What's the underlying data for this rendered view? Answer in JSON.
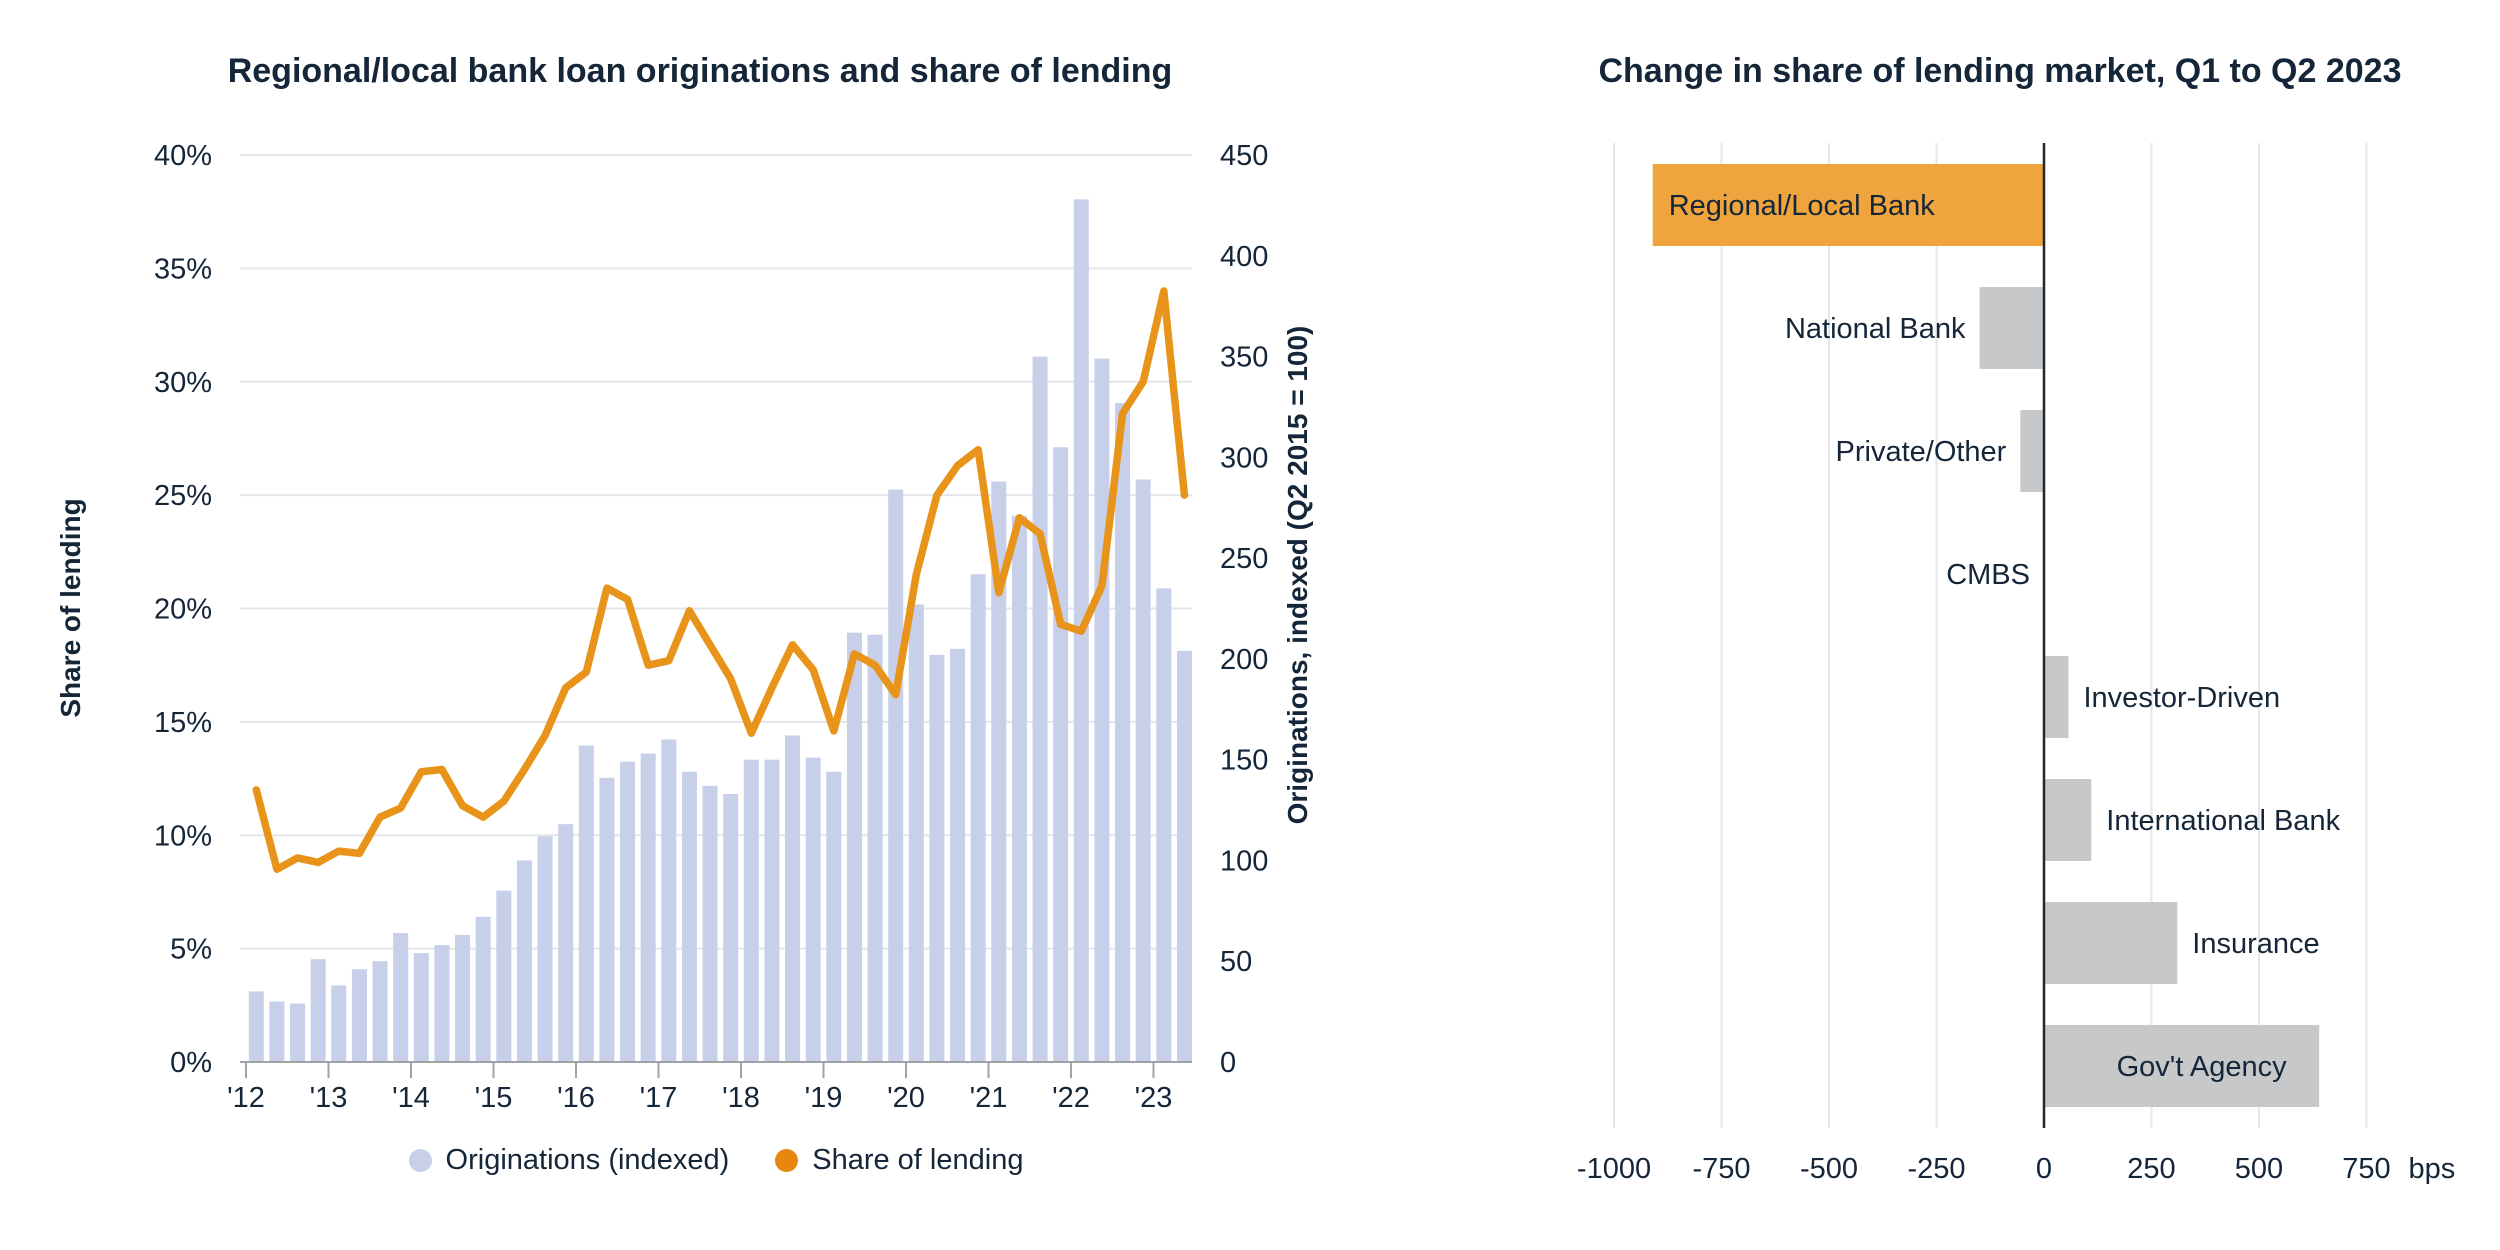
{
  "colors": {
    "navy_text": "#142638",
    "bar_lavender": "#C7CFE9",
    "line_orange": "#E8941A",
    "legend_orange_dot": "#E8870E",
    "highlight_orange_bar": "#F0A43D",
    "gray_bar": "#C6C8CA",
    "gridline": "#E4E6E9",
    "axis_gray": "#9EA3A8",
    "zero_line_dark": "#23272E"
  },
  "chart_data": [
    {
      "type": "bar",
      "subtype": "combo-bar-line-quarterly",
      "title": "Regional/local bank loan originations and share of lending",
      "x_year_ticks": [
        "'12",
        "'13",
        "'14",
        "'15",
        "'16",
        "'17",
        "'18",
        "'19",
        "'20",
        "'21",
        "'22",
        "'23"
      ],
      "quarters": [
        "2012 Q1",
        "2012 Q2",
        "2012 Q3",
        "2012 Q4",
        "2013 Q1",
        "2013 Q2",
        "2013 Q3",
        "2013 Q4",
        "2014 Q1",
        "2014 Q2",
        "2014 Q3",
        "2014 Q4",
        "2015 Q1",
        "2015 Q2",
        "2015 Q3",
        "2015 Q4",
        "2016 Q1",
        "2016 Q2",
        "2016 Q3",
        "2016 Q4",
        "2017 Q1",
        "2017 Q2",
        "2017 Q3",
        "2017 Q4",
        "2018 Q1",
        "2018 Q2",
        "2018 Q3",
        "2018 Q4",
        "2019 Q1",
        "2019 Q2",
        "2019 Q3",
        "2019 Q4",
        "2020 Q1",
        "2020 Q2",
        "2020 Q3",
        "2020 Q4",
        "2021 Q1",
        "2021 Q2",
        "2021 Q3",
        "2021 Q4",
        "2022 Q1",
        "2022 Q2",
        "2022 Q3",
        "2022 Q4",
        "2023 Q1",
        "2023 Q2"
      ],
      "series": [
        {
          "name": "Originations (indexed)",
          "mark": "bar",
          "axis": "right",
          "color_key": "bar_lavender",
          "values": [
            35,
            30,
            29,
            51,
            38,
            46,
            50,
            64,
            54,
            58,
            63,
            72,
            85,
            100,
            112,
            118,
            157,
            141,
            149,
            153,
            160,
            144,
            137,
            133,
            150,
            150,
            162,
            151,
            144,
            213,
            212,
            284,
            227,
            202,
            205,
            242,
            288,
            271,
            350,
            305,
            428,
            349,
            327,
            289,
            235,
            204
          ]
        },
        {
          "name": "Share of lending",
          "mark": "line",
          "axis": "left",
          "color_key": "line_orange",
          "values": [
            12.0,
            8.5,
            9.0,
            8.8,
            9.3,
            9.2,
            10.8,
            11.2,
            12.8,
            12.9,
            11.3,
            10.8,
            11.5,
            12.9,
            14.4,
            16.5,
            17.2,
            20.9,
            20.4,
            17.5,
            17.7,
            19.9,
            18.4,
            16.9,
            14.5,
            16.5,
            18.4,
            17.3,
            14.6,
            18.0,
            17.5,
            16.2,
            21.5,
            25.0,
            26.3,
            27.0,
            20.7,
            24.0,
            23.3,
            19.3,
            19.0,
            21.0,
            28.6,
            30.0,
            34.0,
            25.0
          ]
        }
      ],
      "left_axis": {
        "title": "Share of lending",
        "min": 0,
        "max": 40,
        "tick_labels": [
          "0%",
          "5%",
          "10%",
          "15%",
          "20%",
          "25%",
          "30%",
          "35%",
          "40%"
        ]
      },
      "right_axis": {
        "title": "Originations, indexed (Q2 2015 = 100)",
        "min": 0,
        "max": 450,
        "tick_labels": [
          "0",
          "50",
          "100",
          "150",
          "200",
          "250",
          "300",
          "350",
          "400",
          "450"
        ]
      },
      "grid": "horizontal-light",
      "legend_position": "bottom-center",
      "legend": [
        {
          "label": "Originations (indexed)",
          "color_key": "bar_lavender_dot"
        },
        {
          "label": "Share of lending",
          "color_key": "legend_orange_dot"
        }
      ]
    },
    {
      "type": "bar",
      "subtype": "horizontal-diverging",
      "title": "Change in share of lending market, Q1 to Q2 2023",
      "categories": [
        "Regional/Local Bank",
        "National Bank",
        "Private/Other",
        "CMBS",
        "Investor-Driven",
        "International Bank",
        "Insurance",
        "Gov't Agency"
      ],
      "values_bps": [
        -910,
        -150,
        -55,
        0,
        57,
        110,
        310,
        640
      ],
      "highlighted_category": "Regional/Local Bank",
      "bar_color_keys": [
        "highlight_orange_bar",
        "gray_bar",
        "gray_bar",
        "gray_bar",
        "gray_bar",
        "gray_bar",
        "gray_bar",
        "gray_bar"
      ],
      "label_side": [
        "inside-left",
        "left",
        "left",
        "left",
        "right",
        "right",
        "right",
        "inside-center"
      ],
      "x_ticks": [
        "-1000",
        "-750",
        "-500",
        "-250",
        "0",
        "250",
        "500",
        "750"
      ],
      "x_tick_values": [
        -1000,
        -750,
        -500,
        -250,
        0,
        250,
        500,
        750
      ],
      "x_unit_suffix": "bps",
      "xlim": [
        -1000,
        750
      ],
      "grid": "vertical-light"
    }
  ]
}
